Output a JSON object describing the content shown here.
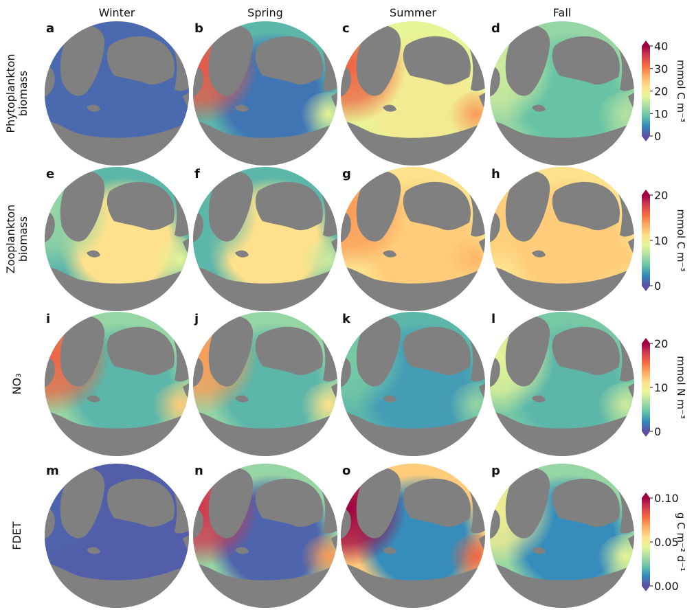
{
  "chart_data": {
    "type": "heatmap",
    "kind": "seasonal polar maps (Arctic Ocean)",
    "columns": [
      "Winter",
      "Spring",
      "Summer",
      "Fall"
    ],
    "rows": [
      {
        "variable": "Phytoplankton\nbiomass",
        "unit": "mmol C m⁻³",
        "colorbar_ticks": [
          "0",
          "10",
          "20",
          "30",
          "40"
        ],
        "range": [
          0,
          40
        ],
        "panels": [
          {
            "letter": "a",
            "season": "Winter",
            "basin": 2,
            "atlantic": 2,
            "pacific": 2,
            "shelf": 2
          },
          {
            "letter": "b",
            "season": "Spring",
            "basin": 3,
            "atlantic": 33,
            "pacific": 18,
            "shelf": 8
          },
          {
            "letter": "c",
            "season": "Summer",
            "basin": 20,
            "atlantic": 32,
            "pacific": 28,
            "shelf": 18
          },
          {
            "letter": "d",
            "season": "Fall",
            "basin": 9,
            "atlantic": 16,
            "pacific": 14,
            "shelf": 12
          }
        ]
      },
      {
        "variable": "Zooplankton\nbiomass",
        "unit": "mmol C m⁻³",
        "colorbar_ticks": [
          "0",
          "10",
          "20"
        ],
        "range": [
          0,
          20
        ],
        "panels": [
          {
            "letter": "e",
            "season": "Winter",
            "basin": 11,
            "atlantic": 6,
            "pacific": 9,
            "shelf": 4
          },
          {
            "letter": "f",
            "season": "Spring",
            "basin": 11,
            "atlantic": 4,
            "pacific": 8,
            "shelf": 4
          },
          {
            "letter": "g",
            "season": "Summer",
            "basin": 12,
            "atlantic": 14,
            "pacific": 13,
            "shelf": 11
          },
          {
            "letter": "h",
            "season": "Fall",
            "basin": 12,
            "atlantic": 12,
            "pacific": 12,
            "shelf": 11
          }
        ]
      },
      {
        "variable": "NO₃",
        "unit": "mmol N m⁻³",
        "colorbar_ticks": [
          "0",
          "10",
          "20"
        ],
        "range": [
          0,
          20
        ],
        "panels": [
          {
            "letter": "i",
            "season": "Winter",
            "basin": 4,
            "atlantic": 16,
            "pacific": 12,
            "shelf": 6
          },
          {
            "letter": "j",
            "season": "Spring",
            "basin": 4,
            "atlantic": 14,
            "pacific": 11,
            "shelf": 6
          },
          {
            "letter": "k",
            "season": "Summer",
            "basin": 3,
            "atlantic": 5,
            "pacific": 6,
            "shelf": 4
          },
          {
            "letter": "l",
            "season": "Fall",
            "basin": 4,
            "atlantic": 9,
            "pacific": 8,
            "shelf": 5
          }
        ]
      },
      {
        "variable": "FDET",
        "unit": "g C m⁻² d⁻¹",
        "colorbar_ticks": [
          "0.00",
          "0.05",
          "0.10"
        ],
        "range": [
          0,
          0.1
        ],
        "panels": [
          {
            "letter": "m",
            "season": "Winter",
            "basin": 0.003,
            "atlantic": 0.004,
            "pacific": 0.003,
            "shelf": 0.003
          },
          {
            "letter": "n",
            "season": "Spring",
            "basin": 0.004,
            "atlantic": 0.09,
            "pacific": 0.07,
            "shelf": 0.03
          },
          {
            "letter": "o",
            "season": "Summer",
            "basin": 0.012,
            "atlantic": 0.1,
            "pacific": 0.08,
            "shelf": 0.06
          },
          {
            "letter": "p",
            "season": "Fall",
            "basin": 0.012,
            "atlantic": 0.05,
            "pacific": 0.045,
            "shelf": 0.03
          }
        ]
      }
    ],
    "colormap": "Spectral_r",
    "colormap_stops": [
      "#5e4fa2",
      "#3288bd",
      "#66c2a5",
      "#abdda4",
      "#e6f598",
      "#fee08b",
      "#fdae61",
      "#f46d43",
      "#d53e4f",
      "#9e0142"
    ],
    "land_color": "#808080"
  }
}
